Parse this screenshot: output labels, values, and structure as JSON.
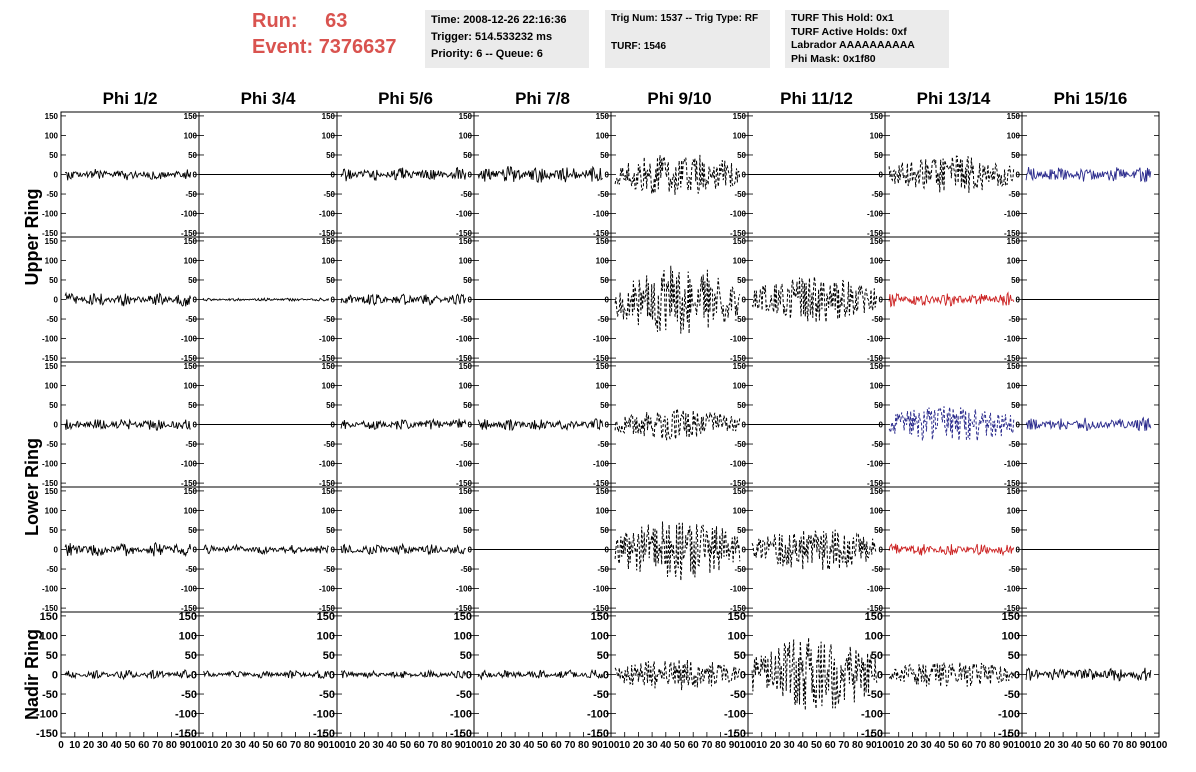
{
  "header": {
    "run_label": "Run:",
    "run_value": "63",
    "event_label": "Event:",
    "event_value": "7376637",
    "time_box": [
      "Time: 2008-12-26 22:16:36",
      "Trigger: 514.533232 ms",
      "Priority: 6 -- Queue: 6"
    ],
    "trig_box": [
      "Trig Num: 1537 -- Trig Type: RF",
      "",
      "TURF: 1546"
    ],
    "turf_box": [
      "TURF This Hold: 0x1",
      "TURF Active Holds: 0xf",
      "Labrador AAAAAAAAAA",
      "Phi Mask: 0x1f80"
    ]
  },
  "colors": {
    "black": "#000000",
    "red": "#cc2222",
    "blue": "#2a2a8c",
    "header_red": "#d9534f",
    "box_bg": "#ebebeb"
  },
  "chart_data": {
    "type": "line",
    "columns": [
      "Phi 1/2",
      "Phi 3/4",
      "Phi 5/6",
      "Phi 7/8",
      "Phi 9/10",
      "Phi 11/12",
      "Phi 13/14",
      "Phi 15/16"
    ],
    "ring_labels": [
      "Upper Ring",
      "Lower Ring",
      "Nadir Ring"
    ],
    "xlim": [
      0,
      100
    ],
    "ylim": [
      -160,
      160
    ],
    "x_ticks": [
      "0",
      "10",
      "20",
      "30",
      "40",
      "50",
      "60",
      "70",
      "80",
      "90",
      "100"
    ],
    "y_ticks": [
      "150",
      "100",
      "50",
      "0",
      "-50",
      "-100",
      "-150"
    ],
    "grid": false,
    "panels": [
      [
        {
          "amplitude": 15,
          "style": "solid",
          "color": "black"
        },
        {
          "amplitude": 0,
          "style": "flat",
          "color": "black"
        },
        {
          "amplitude": 18,
          "style": "solid",
          "color": "black"
        },
        {
          "amplitude": 22,
          "style": "solid",
          "color": "black"
        },
        {
          "amplitude": 55,
          "style": "dashed",
          "color": "black"
        },
        {
          "amplitude": 0,
          "style": "flat",
          "color": "black"
        },
        {
          "amplitude": 50,
          "style": "dashed",
          "color": "black"
        },
        {
          "amplitude": 20,
          "style": "solid",
          "color": "blue"
        }
      ],
      [
        {
          "amplitude": 18,
          "style": "solid",
          "color": "black"
        },
        {
          "amplitude": 4,
          "style": "solid",
          "color": "black"
        },
        {
          "amplitude": 15,
          "style": "solid",
          "color": "black"
        },
        {
          "amplitude": 0,
          "style": "flat",
          "color": "black"
        },
        {
          "amplitude": 90,
          "style": "dashed",
          "color": "black"
        },
        {
          "amplitude": 60,
          "style": "dashed",
          "color": "black"
        },
        {
          "amplitude": 18,
          "style": "solid",
          "color": "red"
        },
        {
          "amplitude": 0,
          "style": "flat",
          "color": "black"
        }
      ],
      [
        {
          "amplitude": 16,
          "style": "solid",
          "color": "black"
        },
        {
          "amplitude": 0,
          "style": "flat",
          "color": "black"
        },
        {
          "amplitude": 15,
          "style": "solid",
          "color": "black"
        },
        {
          "amplitude": 15,
          "style": "solid",
          "color": "black"
        },
        {
          "amplitude": 40,
          "style": "dashed",
          "color": "black"
        },
        {
          "amplitude": 0,
          "style": "flat",
          "color": "black"
        },
        {
          "amplitude": 50,
          "style": "dashed",
          "color": "blue"
        },
        {
          "amplitude": 18,
          "style": "solid",
          "color": "blue"
        }
      ],
      [
        {
          "amplitude": 18,
          "style": "solid",
          "color": "black"
        },
        {
          "amplitude": 12,
          "style": "solid",
          "color": "black"
        },
        {
          "amplitude": 14,
          "style": "solid",
          "color": "black"
        },
        {
          "amplitude": 0,
          "style": "flat",
          "color": "black"
        },
        {
          "amplitude": 80,
          "style": "dashed",
          "color": "black"
        },
        {
          "amplitude": 55,
          "style": "dashed",
          "color": "black"
        },
        {
          "amplitude": 16,
          "style": "solid",
          "color": "red"
        },
        {
          "amplitude": 0,
          "style": "flat",
          "color": "black"
        }
      ],
      [
        {
          "amplitude": 12,
          "style": "solid",
          "color": "black"
        },
        {
          "amplitude": 10,
          "style": "solid",
          "color": "black"
        },
        {
          "amplitude": 10,
          "style": "solid",
          "color": "black"
        },
        {
          "amplitude": 12,
          "style": "solid",
          "color": "black"
        },
        {
          "amplitude": 40,
          "style": "dashed",
          "color": "black"
        },
        {
          "amplitude": 100,
          "style": "dashed",
          "color": "black"
        },
        {
          "amplitude": 35,
          "style": "dashed",
          "color": "black"
        },
        {
          "amplitude": 18,
          "style": "solid",
          "color": "black"
        }
      ]
    ]
  }
}
